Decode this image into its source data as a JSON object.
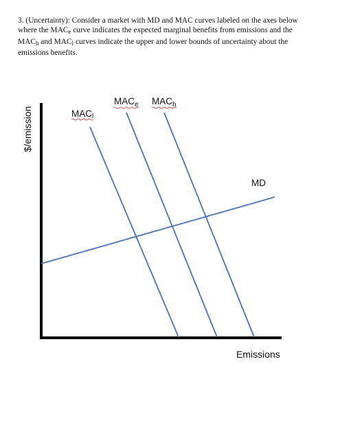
{
  "question": {
    "number": "3.",
    "topic": "(Uncertainty):",
    "line1_rest": "Consider a market with MD and MAC curves labeled on the axes below",
    "line2_a": "where the MAC",
    "line2_sub": "e",
    "line2_b": " curve indicates the expected marginal benefits from emissions and the",
    "line3_a": "MAC",
    "line3_sub1": "h",
    "line3_b": " and MAC",
    "line3_sub2": "l",
    "line3_c": " curves indicate the upper and lower bounds of uncertainty about the",
    "line4": "emissions benefits."
  },
  "diagram": {
    "ylabel": "$/emission",
    "xlabel": "Emissions",
    "curve_color": "#4472c4",
    "axis_color": "#000000",
    "curves": {
      "md": {
        "label": "MD"
      },
      "mac_l": {
        "label_main": "MAC",
        "label_sub": "l"
      },
      "mac_e": {
        "label_main": "MAC",
        "label_sub": "e"
      },
      "mac_h": {
        "label_main": "MAC",
        "label_sub": "h"
      }
    }
  }
}
